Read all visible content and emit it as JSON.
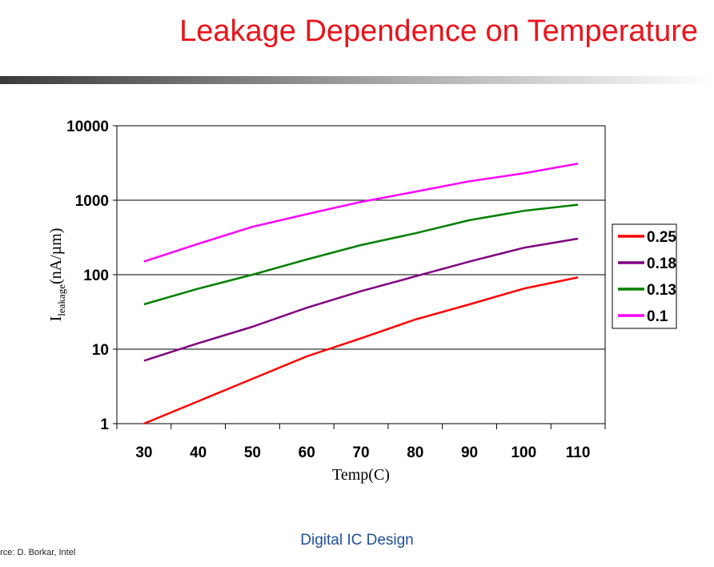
{
  "slide": {
    "title": "Leakage Dependence on Temperature",
    "footer": "Digital IC Design",
    "source": "urce: D. Borkar, Intel"
  },
  "chart_data": {
    "type": "line",
    "x": [
      30,
      40,
      50,
      60,
      70,
      80,
      90,
      100,
      110
    ],
    "xlim": [
      25,
      115
    ],
    "ylim": [
      1,
      10000
    ],
    "yscale": "log",
    "yticks": [
      1,
      10,
      100,
      1000,
      10000
    ],
    "ytick_labels": [
      "1",
      "10",
      "100",
      "1000",
      "10000"
    ],
    "xtick_labels": [
      "30",
      "40",
      "50",
      "60",
      "70",
      "80",
      "90",
      "100",
      "110"
    ],
    "xlabel": "Temp(C)",
    "ylabel": "I",
    "ylabel_sub": "leakage",
    "ylabel_suffix": "(nA/µm)",
    "grid": "horizontal major lines",
    "legend_position": "right",
    "series": [
      {
        "name": "0.25",
        "color": "#ff0000",
        "values": [
          1,
          2.0,
          4.0,
          8.0,
          14,
          25,
          40,
          65,
          92
        ]
      },
      {
        "name": "0.18",
        "color": "#800080",
        "values": [
          7,
          12,
          20,
          36,
          60,
          95,
          150,
          230,
          305
        ]
      },
      {
        "name": "0.13",
        "color": "#008000",
        "values": [
          40,
          65,
          100,
          160,
          250,
          360,
          540,
          720,
          870
        ]
      },
      {
        "name": "0.1",
        "color": "#ff00ff",
        "values": [
          150,
          260,
          440,
          650,
          950,
          1300,
          1800,
          2300,
          3100
        ]
      }
    ]
  }
}
